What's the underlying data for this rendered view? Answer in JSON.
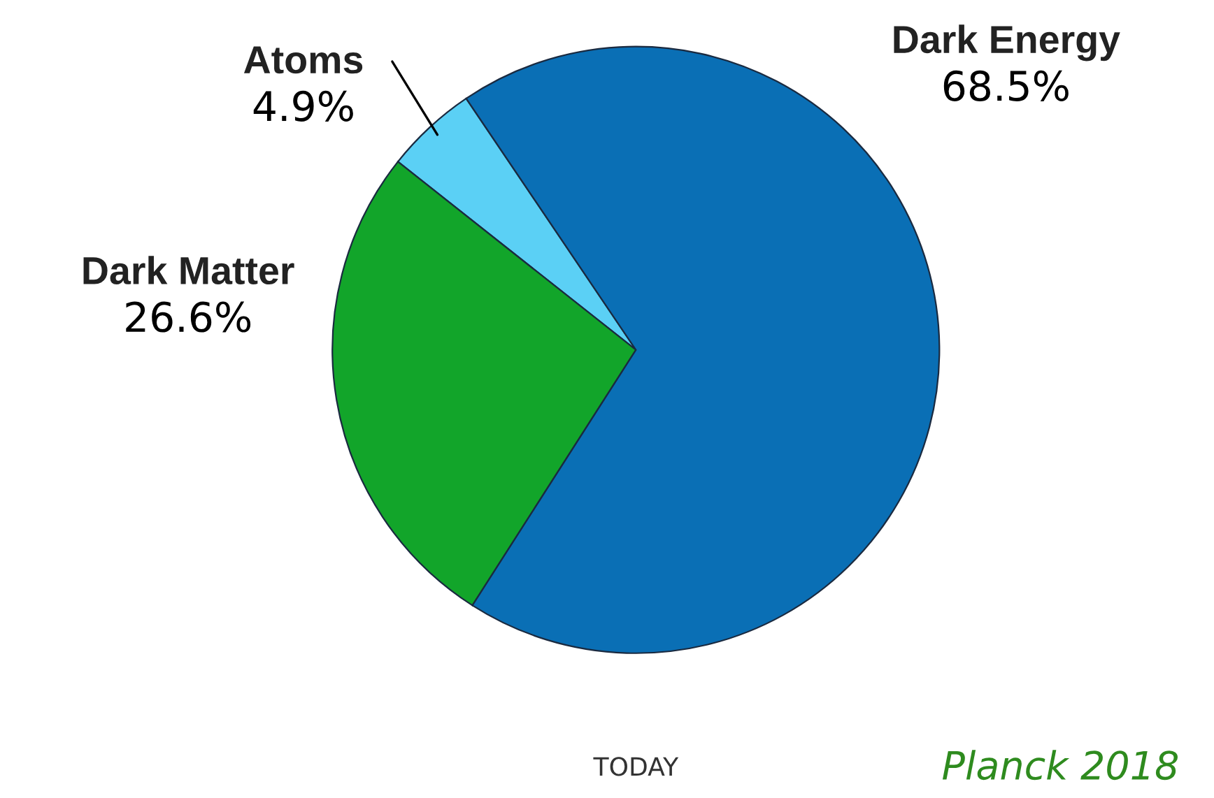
{
  "chart_data": {
    "type": "pie",
    "categories": [
      "Atoms",
      "Dark Matter",
      "Dark Energy"
    ],
    "values": [
      4.9,
      26.6,
      68.5
    ],
    "value_labels": [
      "4.9%",
      "26.6%",
      "68.5%"
    ],
    "colors": [
      "#5bd0f5",
      "#12a52a",
      "#0a6fb5"
    ],
    "annotations": [
      "TODAY",
      "Planck 2018"
    ]
  }
}
